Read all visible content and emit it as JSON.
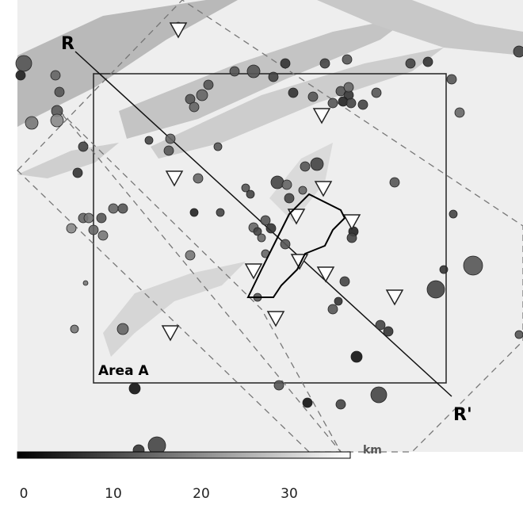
{
  "map": {
    "labels": {
      "profile_start": "R",
      "profile_end": "R'",
      "area": "Area A"
    },
    "scale_bar": {
      "unit": "km",
      "ticks": [
        "0",
        "10",
        "20",
        "30"
      ]
    }
  }
}
